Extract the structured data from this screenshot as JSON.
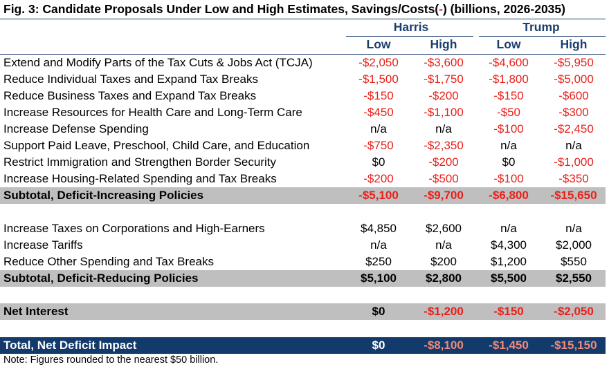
{
  "title_pre": "Fig. 3: Candidate Proposals Under Low and High Estimates, Savings/Costs(",
  "title_minus": "-",
  "title_post": ") (billions, 2026-2035)",
  "groups": [
    {
      "name": "Harris",
      "columns": [
        "Low",
        "High"
      ]
    },
    {
      "name": "Trump",
      "columns": [
        "Low",
        "High"
      ]
    }
  ],
  "rows": [
    {
      "type": "item",
      "label": "Extend and Modify Parts of the Tax Cuts & Jobs Act (TCJA)",
      "values": [
        "-$2,050",
        "-$3,600",
        "-$4,600",
        "-$5,950"
      ]
    },
    {
      "type": "item",
      "label": "Reduce Individual Taxes and Expand Tax Breaks",
      "values": [
        "-$1,500",
        "-$1,750",
        "-$1,800",
        "-$5,000"
      ]
    },
    {
      "type": "item",
      "label": "Reduce Business Taxes and Expand Tax Breaks",
      "values": [
        "-$150",
        "-$200",
        "-$150",
        "-$600"
      ]
    },
    {
      "type": "item",
      "label": "Increase Resources for Health Care and Long-Term Care",
      "values": [
        "-$450",
        "-$1,100",
        "-$50",
        "-$300"
      ]
    },
    {
      "type": "item",
      "label": "Increase Defense Spending",
      "values": [
        "n/a",
        "n/a",
        "-$100",
        "-$2,450"
      ]
    },
    {
      "type": "item",
      "label": "Support Paid Leave, Preschool, Child Care, and Education",
      "values": [
        "-$750",
        "-$2,350",
        "n/a",
        "n/a"
      ]
    },
    {
      "type": "item",
      "label": "Restrict Immigration and Strengthen Border Security",
      "values": [
        "$0",
        "-$200",
        "$0",
        "-$1,000"
      ]
    },
    {
      "type": "item",
      "label": "Increase Housing-Related Spending and Tax Breaks",
      "values": [
        "-$200",
        "-$500",
        "-$100",
        "-$350"
      ]
    },
    {
      "type": "subtotal",
      "label": "Subtotal, Deficit-Increasing Policies",
      "values": [
        "-$5,100",
        "-$9,700",
        "-$6,800",
        "-$15,650"
      ]
    },
    {
      "type": "item",
      "label": "Increase Taxes on Corporations and High-Earners",
      "values": [
        "$4,850",
        "$2,600",
        "n/a",
        "n/a"
      ]
    },
    {
      "type": "item",
      "label": "Increase Tariffs",
      "values": [
        "n/a",
        "n/a",
        "$4,300",
        "$2,000"
      ]
    },
    {
      "type": "item",
      "label": "Reduce Other Spending and Tax Breaks",
      "values": [
        "$250",
        "$200",
        "$1,200",
        "$550"
      ]
    },
    {
      "type": "subtotal",
      "label": "Subtotal, Deficit-Reducing Policies",
      "values": [
        "$5,100",
        "$2,800",
        "$5,500",
        "$2,550"
      ]
    },
    {
      "type": "subtotal",
      "label": "Net Interest",
      "values": [
        "$0",
        "-$1,200",
        "-$150",
        "-$2,050"
      ]
    },
    {
      "type": "total",
      "label": "Total, Net Deficit Impact",
      "values": [
        "$0",
        "-$8,100",
        "-$1,450",
        "-$15,150"
      ]
    }
  ],
  "note": "Note: Figures rounded to the nearest $50 billion.",
  "colors": {
    "negative": "#e8211b",
    "header": "#1c3f6e",
    "subtotal_bg": "#bfbfbf",
    "total_bg": "#123a6b",
    "total_negative": "#f28a78"
  }
}
